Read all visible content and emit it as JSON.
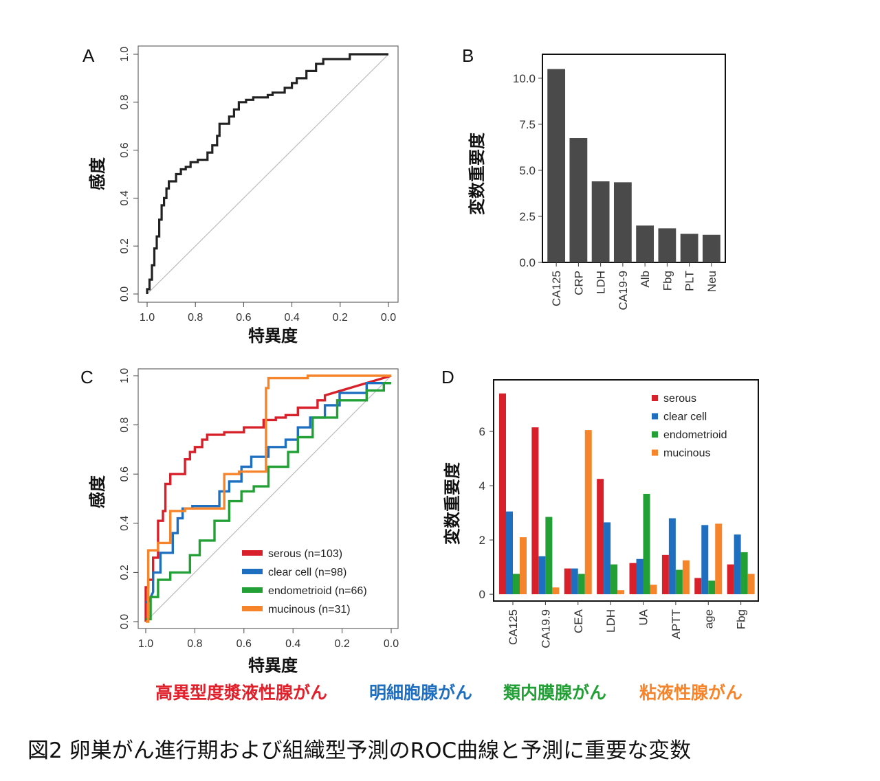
{
  "caption": "図2 卵巣がん進行期および組織型予測のROC曲線と予測に重要な変数",
  "histology_labels": [
    {
      "text": "高異型度漿液性腺がん",
      "color": "#e0202a"
    },
    {
      "text": "明細胞腺がん",
      "color": "#1f6fc0"
    },
    {
      "text": "類内膜腺がん",
      "color": "#22a035"
    },
    {
      "text": "粘液性腺がん",
      "color": "#f5842a"
    }
  ],
  "colors": {
    "serous": "#d7202a",
    "clear_cell": "#1f6fc0",
    "endometrioid": "#22a035",
    "mucinous": "#f5842a",
    "bar_gray": "#4a4a4a",
    "roc_black": "#222222",
    "diagonal": "#bbbbbb"
  },
  "chart_data": [
    {
      "panel": "A",
      "type": "line",
      "xlabel": "特異度",
      "ylabel": "感度",
      "xlim": [
        1.0,
        0.0
      ],
      "ylim": [
        0.0,
        1.0
      ],
      "xticks": [
        "1.0",
        "0.8",
        "0.6",
        "0.4",
        "0.2",
        "0.0"
      ],
      "yticks": [
        "0.0",
        "0.2",
        "0.4",
        "0.6",
        "0.8",
        "1.0"
      ],
      "diagonal": true,
      "series": [
        {
          "color": "#222222",
          "x": [
            1.0,
            1.0,
            0.99,
            0.99,
            0.98,
            0.98,
            0.97,
            0.97,
            0.96,
            0.96,
            0.95,
            0.95,
            0.94,
            0.94,
            0.93,
            0.93,
            0.92,
            0.92,
            0.91,
            0.91,
            0.88,
            0.88,
            0.86,
            0.86,
            0.84,
            0.84,
            0.82,
            0.82,
            0.79,
            0.79,
            0.75,
            0.75,
            0.73,
            0.73,
            0.71,
            0.71,
            0.7,
            0.7,
            0.66,
            0.66,
            0.64,
            0.64,
            0.62,
            0.62,
            0.59,
            0.59,
            0.56,
            0.56,
            0.5,
            0.5,
            0.48,
            0.48,
            0.43,
            0.43,
            0.4,
            0.4,
            0.38,
            0.38,
            0.34,
            0.34,
            0.3,
            0.3,
            0.27,
            0.27,
            0.16,
            0.16,
            0.0
          ],
          "y": [
            0.0,
            0.02,
            0.02,
            0.06,
            0.06,
            0.12,
            0.12,
            0.19,
            0.19,
            0.24,
            0.24,
            0.31,
            0.31,
            0.37,
            0.37,
            0.4,
            0.4,
            0.44,
            0.44,
            0.47,
            0.47,
            0.5,
            0.5,
            0.52,
            0.52,
            0.53,
            0.53,
            0.55,
            0.55,
            0.56,
            0.56,
            0.59,
            0.59,
            0.62,
            0.62,
            0.66,
            0.66,
            0.71,
            0.71,
            0.74,
            0.74,
            0.77,
            0.77,
            0.8,
            0.8,
            0.81,
            0.81,
            0.82,
            0.82,
            0.83,
            0.83,
            0.84,
            0.84,
            0.86,
            0.86,
            0.88,
            0.88,
            0.9,
            0.9,
            0.93,
            0.93,
            0.96,
            0.96,
            0.98,
            0.98,
            1.0,
            1.0
          ]
        }
      ]
    },
    {
      "panel": "B",
      "type": "bar",
      "ylabel": "変数重要度",
      "categories": [
        "CA125",
        "CRP",
        "LDH",
        "CA19-9",
        "Alb",
        "Fbg",
        "PLT",
        "Neu"
      ],
      "values": [
        10.5,
        6.75,
        4.4,
        4.35,
        2.0,
        1.85,
        1.55,
        1.5
      ],
      "ylim": [
        0,
        11.3
      ],
      "yticks": [
        0,
        2.5,
        5.0,
        7.5,
        10.0
      ],
      "ytick_labels": [
        "0.0",
        "2.5",
        "5.0",
        "7.5",
        "10.0"
      ]
    },
    {
      "panel": "C",
      "type": "line",
      "xlabel": "特異度",
      "ylabel": "感度",
      "xlim": [
        1.0,
        0.0
      ],
      "ylim": [
        0.0,
        1.0
      ],
      "xticks": [
        "1.0",
        "0.8",
        "0.6",
        "0.4",
        "0.2",
        "0.0"
      ],
      "yticks": [
        "0.0",
        "0.2",
        "0.4",
        "0.6",
        "0.8",
        "1.0"
      ],
      "diagonal": true,
      "legend_position": "bottom-right",
      "series": [
        {
          "name": "serous (n=103)",
          "key": "serous",
          "x": [
            1.0,
            1.0,
            0.99,
            0.99,
            0.97,
            0.97,
            0.95,
            0.95,
            0.93,
            0.93,
            0.92,
            0.92,
            0.9,
            0.9,
            0.84,
            0.84,
            0.82,
            0.82,
            0.8,
            0.8,
            0.77,
            0.77,
            0.75,
            0.75,
            0.68,
            0.68,
            0.6,
            0.6,
            0.52,
            0.52,
            0.47,
            0.47,
            0.43,
            0.43,
            0.38,
            0.38,
            0.3,
            0.3,
            0.27,
            0.27,
            0.0
          ],
          "y": [
            0.0,
            0.14,
            0.14,
            0.17,
            0.17,
            0.26,
            0.26,
            0.41,
            0.41,
            0.45,
            0.45,
            0.56,
            0.56,
            0.6,
            0.6,
            0.66,
            0.66,
            0.69,
            0.69,
            0.71,
            0.71,
            0.74,
            0.74,
            0.76,
            0.76,
            0.77,
            0.77,
            0.79,
            0.79,
            0.82,
            0.82,
            0.83,
            0.83,
            0.84,
            0.84,
            0.87,
            0.87,
            0.9,
            0.9,
            0.92,
            1.0
          ]
        },
        {
          "name": "clear cell (n=98)",
          "key": "clear_cell",
          "x": [
            1.0,
            0.99,
            0.97,
            0.97,
            0.94,
            0.94,
            0.89,
            0.89,
            0.87,
            0.87,
            0.85,
            0.85,
            0.81,
            0.81,
            0.7,
            0.7,
            0.66,
            0.66,
            0.61,
            0.61,
            0.57,
            0.57,
            0.5,
            0.5,
            0.43,
            0.43,
            0.38,
            0.38,
            0.33,
            0.33,
            0.27,
            0.27,
            0.21,
            0.21,
            0.1,
            0.1,
            0.0
          ],
          "y": [
            0.08,
            0.08,
            0.12,
            0.2,
            0.2,
            0.28,
            0.28,
            0.36,
            0.36,
            0.42,
            0.42,
            0.46,
            0.46,
            0.47,
            0.47,
            0.53,
            0.53,
            0.57,
            0.57,
            0.63,
            0.63,
            0.67,
            0.67,
            0.71,
            0.71,
            0.74,
            0.74,
            0.79,
            0.79,
            0.83,
            0.83,
            0.88,
            0.88,
            0.93,
            0.93,
            0.97,
            0.97
          ]
        },
        {
          "name": "endometrioid (n=66)",
          "key": "endometrioid",
          "x": [
            1.0,
            0.98,
            0.98,
            0.95,
            0.95,
            0.9,
            0.9,
            0.82,
            0.82,
            0.78,
            0.78,
            0.72,
            0.72,
            0.66,
            0.66,
            0.61,
            0.61,
            0.56,
            0.56,
            0.5,
            0.5,
            0.42,
            0.42,
            0.38,
            0.38,
            0.32,
            0.32,
            0.22,
            0.22,
            0.1,
            0.1,
            0.03,
            0.03,
            0.0
          ],
          "y": [
            0.01,
            0.01,
            0.1,
            0.1,
            0.17,
            0.17,
            0.2,
            0.2,
            0.27,
            0.27,
            0.33,
            0.33,
            0.41,
            0.41,
            0.49,
            0.49,
            0.53,
            0.53,
            0.55,
            0.55,
            0.63,
            0.63,
            0.69,
            0.69,
            0.75,
            0.75,
            0.83,
            0.83,
            0.9,
            0.9,
            0.94,
            0.94,
            0.97,
            0.97
          ]
        },
        {
          "name": "mucinous (n=31)",
          "key": "mucinous",
          "x": [
            1.0,
            0.99,
            0.99,
            0.95,
            0.95,
            0.9,
            0.9,
            0.84,
            0.84,
            0.68,
            0.68,
            0.62,
            0.62,
            0.51,
            0.51,
            0.5,
            0.5,
            0.34,
            0.34,
            0.03,
            0.03,
            0.0
          ],
          "y": [
            0.0,
            0.0,
            0.29,
            0.29,
            0.32,
            0.32,
            0.45,
            0.45,
            0.46,
            0.46,
            0.6,
            0.6,
            0.61,
            0.61,
            0.95,
            0.95,
            0.99,
            0.99,
            1.0,
            1.0,
            1.0,
            1.0
          ]
        }
      ]
    },
    {
      "panel": "D",
      "type": "bar",
      "ylabel": "変数重要度",
      "categories": [
        "CA125",
        "CA19.9",
        "CEA",
        "LDH",
        "UA",
        "APTT",
        "age",
        "Fbg"
      ],
      "ylim": [
        -0.25,
        7.9
      ],
      "yticks": [
        0,
        2,
        4,
        6
      ],
      "ytick_labels": [
        "0",
        "2",
        "4",
        "6"
      ],
      "legend_position": "top-right",
      "series": [
        {
          "name": "serous",
          "key": "serous",
          "values": [
            7.4,
            6.15,
            0.95,
            4.25,
            1.15,
            1.45,
            0.6,
            1.1
          ]
        },
        {
          "name": "clear cell",
          "key": "clear_cell",
          "values": [
            3.05,
            1.4,
            0.95,
            2.65,
            1.3,
            2.8,
            2.55,
            2.2
          ]
        },
        {
          "name": "endometrioid",
          "key": "endometrioid",
          "values": [
            0.75,
            2.85,
            0.75,
            1.1,
            3.7,
            0.9,
            0.5,
            1.55
          ]
        },
        {
          "name": "mucinous",
          "key": "mucinous",
          "values": [
            2.1,
            0.25,
            6.05,
            0.15,
            0.35,
            1.25,
            2.6,
            0.75
          ]
        }
      ]
    }
  ]
}
